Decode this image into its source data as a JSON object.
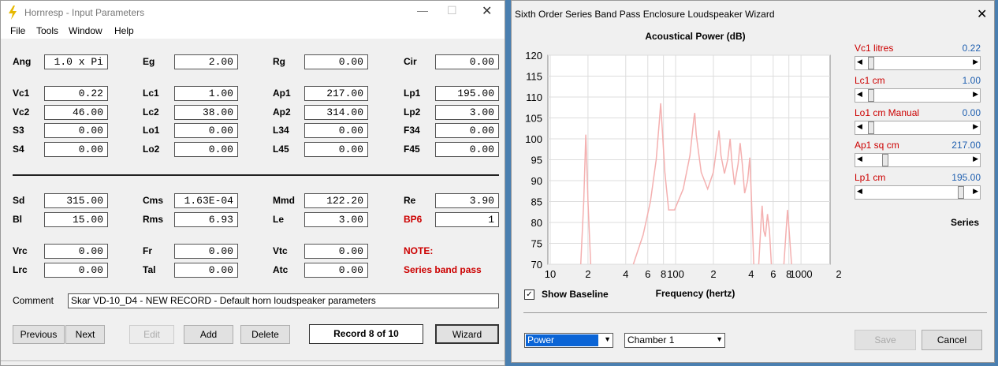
{
  "hornresp": {
    "title": "Hornresp - Input Parameters",
    "menu": [
      "File",
      "Tools",
      "Window",
      "Help"
    ],
    "rows": [
      [
        {
          "label": "Ang",
          "value": "1.0 x Pi"
        },
        {
          "label": "Eg",
          "value": "2.00"
        },
        {
          "label": "Rg",
          "value": "0.00"
        },
        {
          "label": "Cir",
          "value": "0.00"
        }
      ],
      [
        {
          "label": "Vc1",
          "value": "0.22"
        },
        {
          "label": "Lc1",
          "value": "1.00"
        },
        {
          "label": "Ap1",
          "value": "217.00"
        },
        {
          "label": "Lp1",
          "value": "195.00"
        }
      ],
      [
        {
          "label": "Vc2",
          "value": "46.00"
        },
        {
          "label": "Lc2",
          "value": "38.00"
        },
        {
          "label": "Ap2",
          "value": "314.00"
        },
        {
          "label": "Lp2",
          "value": "3.00"
        }
      ],
      [
        {
          "label": "S3",
          "value": "0.00"
        },
        {
          "label": "Lo1",
          "value": "0.00"
        },
        {
          "label": "L34",
          "value": "0.00"
        },
        {
          "label": "F34",
          "value": "0.00"
        }
      ],
      [
        {
          "label": "S4",
          "value": "0.00"
        },
        {
          "label": "Lo2",
          "value": "0.00"
        },
        {
          "label": "L45",
          "value": "0.00"
        },
        {
          "label": "F45",
          "value": "0.00"
        }
      ],
      [
        {
          "label": "Sd",
          "value": "315.00"
        },
        {
          "label": "Cms",
          "value": "1.63E-04"
        },
        {
          "label": "Mmd",
          "value": "122.20"
        },
        {
          "label": "Re",
          "value": "3.90"
        }
      ],
      [
        {
          "label": "Bl",
          "value": "15.00"
        },
        {
          "label": "Rms",
          "value": "6.93"
        },
        {
          "label": "Le",
          "value": "3.00"
        },
        {
          "label": "BP6",
          "value": "1",
          "color": "#cc0000"
        }
      ],
      [
        {
          "label": "Vrc",
          "value": "0.00"
        },
        {
          "label": "Fr",
          "value": "0.00"
        },
        {
          "label": "Vtc",
          "value": "0.00"
        },
        {
          "label": "NOTE:",
          "color": "#cc0000"
        }
      ],
      [
        {
          "label": "Lrc",
          "value": "0.00"
        },
        {
          "label": "Tal",
          "value": "0.00"
        },
        {
          "label": "Atc",
          "value": "0.00"
        },
        {
          "label": "Series band pass",
          "color": "#cc0000"
        }
      ]
    ],
    "comment_label": "Comment",
    "comment": "Skar VD-10_D4 - NEW RECORD - Default horn loudspeaker parameters",
    "buttons": [
      "Previous",
      "Next",
      "Edit",
      "Add",
      "Delete"
    ],
    "record": "Record 8 of 10",
    "wizard_button": "Wizard"
  },
  "wizard": {
    "title": "Sixth Order Series Band Pass Enclosure Loudspeaker Wizard",
    "sliders": [
      {
        "label": "Vc1  litres",
        "value": "0.22"
      },
      {
        "label": "Lc1  cm",
        "value": "1.00"
      },
      {
        "label": "Lo1  cm  Manual",
        "value": "0.00"
      },
      {
        "label": "Ap1  sq cm",
        "value": "217.00"
      },
      {
        "label": "Lp1  cm",
        "value": "195.00"
      }
    ],
    "mode": "Series",
    "baseline": "Show Baseline",
    "dropdowns": [
      "Power",
      "Chamber 1"
    ],
    "buttons": [
      "Save",
      "Cancel"
    ],
    "chart": {
      "type": "line",
      "title": "Acoustical Power (dB)",
      "x_label": "Frequency (hertz)",
      "color": "#f4b0b0",
      "log_x": true,
      "grid": true,
      "xlim": [
        10,
        2000
      ],
      "ylim": [
        70,
        120
      ],
      "xticks": [
        10,
        {
          "value": 20,
          "label": "2"
        },
        {
          "value": 40,
          "label": "4"
        },
        {
          "value": 60,
          "label": "6"
        },
        {
          "value": 80,
          "label": "8"
        },
        100,
        {
          "value": 200,
          "label": "2"
        },
        {
          "value": 400,
          "label": "4"
        },
        {
          "value": 600,
          "label": "6"
        },
        {
          "value": 800,
          "label": "8"
        },
        1000,
        {
          "value": 2000,
          "label": "2"
        }
      ],
      "yticks": [
        70,
        75,
        80,
        85,
        90,
        95,
        100,
        105,
        110,
        115,
        120
      ],
      "x": [
        17.5,
        18.5,
        19.2,
        20,
        21,
        30,
        46,
        55,
        63,
        70,
        74,
        76,
        78,
        82,
        88,
        98,
        115,
        130,
        140,
        142,
        146,
        160,
        180,
        200,
        215,
        222,
        230,
        245,
        260,
        272,
        280,
        295,
        315,
        327,
        340,
        355,
        375,
        390,
        400,
        420,
        440,
        460,
        480,
        490,
        505,
        520,
        540,
        560,
        580,
        650,
        730,
        760,
        780,
        800,
        840
      ],
      "values": [
        70,
        85,
        101,
        85,
        70,
        null,
        70,
        77,
        85,
        95,
        104,
        108.5,
        103,
        92,
        83,
        83,
        88,
        96,
        105,
        106.2,
        101,
        92,
        88,
        92,
        99,
        102,
        96,
        91.7,
        95,
        100,
        95,
        89,
        94,
        99,
        94,
        87,
        90,
        95.5,
        88,
        70,
        null,
        70,
        80,
        84,
        78,
        76.6,
        82,
        78,
        70,
        null,
        70,
        78,
        83,
        79,
        70
      ]
    }
  }
}
